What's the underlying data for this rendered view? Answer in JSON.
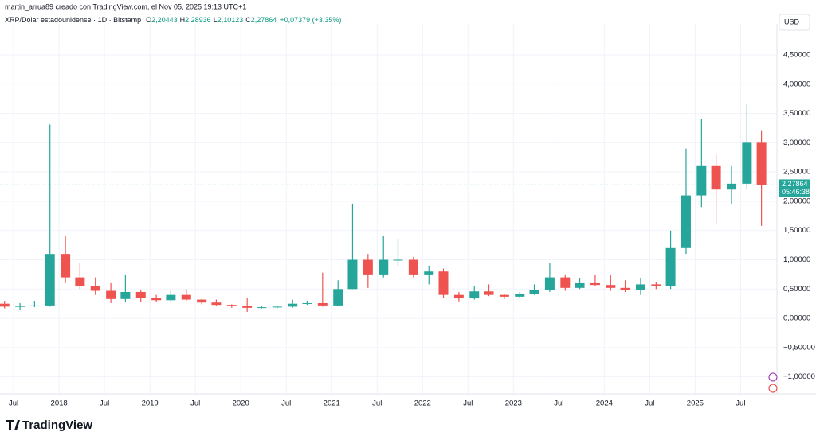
{
  "header": {
    "credit": "martin_arrua89 creado con TradingView.com, el Nov 05, 2025 19:13 UTC+1",
    "symbol": "XRP/Dólar estadounidense · 1D · Bitstamp",
    "ohlc": [
      {
        "key": "O",
        "value": "2,20443"
      },
      {
        "key": "H",
        "value": "2,28936"
      },
      {
        "key": "L",
        "value": "2,10123"
      },
      {
        "key": "C",
        "value": "2,27864"
      }
    ],
    "change": "+0,07379 (+3,35%)",
    "currency": "USD"
  },
  "footer": {
    "logo": "TradingView"
  },
  "chart_data": {
    "type": "candlestick",
    "up_color": "#26a69a",
    "down_color": "#ef5350",
    "grid": true,
    "x": [
      2017.4,
      2017.57,
      2017.73,
      2017.9,
      2018.07,
      2018.23,
      2018.4,
      2018.57,
      2018.73,
      2018.9,
      2019.07,
      2019.23,
      2019.4,
      2019.57,
      2019.73,
      2019.9,
      2020.07,
      2020.23,
      2020.4,
      2020.57,
      2020.73,
      2020.9,
      2021.07,
      2021.23,
      2021.4,
      2021.57,
      2021.73,
      2021.9,
      2022.07,
      2022.23,
      2022.4,
      2022.57,
      2022.73,
      2022.9,
      2023.07,
      2023.23,
      2023.4,
      2023.57,
      2023.73,
      2023.9,
      2024.07,
      2024.23,
      2024.4,
      2024.57,
      2024.73,
      2024.9,
      2025.07,
      2025.23,
      2025.4,
      2025.57,
      2025.73
    ],
    "open": [
      0.25,
      0.2,
      0.21,
      0.22,
      1.1,
      0.7,
      0.55,
      0.47,
      0.33,
      0.45,
      0.35,
      0.31,
      0.4,
      0.32,
      0.27,
      0.23,
      0.21,
      0.18,
      0.19,
      0.2,
      0.25,
      0.26,
      0.22,
      0.5,
      1.0,
      0.75,
      1.0,
      1.0,
      0.75,
      0.8,
      0.4,
      0.34,
      0.46,
      0.4,
      0.37,
      0.42,
      0.48,
      0.7,
      0.52,
      0.6,
      0.57,
      0.52,
      0.48,
      0.58,
      0.55,
      1.2,
      2.1,
      2.6,
      2.2,
      2.3,
      3.0
    ],
    "high": [
      0.3,
      0.26,
      0.3,
      3.31,
      1.4,
      0.95,
      0.7,
      0.6,
      0.75,
      0.48,
      0.4,
      0.48,
      0.5,
      0.33,
      0.32,
      0.24,
      0.34,
      0.21,
      0.21,
      0.32,
      0.3,
      0.78,
      0.65,
      1.96,
      1.1,
      1.41,
      1.35,
      1.05,
      0.9,
      0.85,
      0.45,
      0.55,
      0.58,
      0.42,
      0.45,
      0.58,
      0.94,
      0.75,
      0.68,
      0.75,
      0.74,
      0.65,
      0.68,
      0.62,
      1.5,
      2.9,
      3.4,
      2.8,
      2.6,
      3.66,
      3.2
    ],
    "low": [
      0.17,
      0.15,
      0.19,
      0.2,
      0.6,
      0.5,
      0.4,
      0.26,
      0.28,
      0.28,
      0.28,
      0.29,
      0.3,
      0.24,
      0.22,
      0.18,
      0.11,
      0.17,
      0.17,
      0.18,
      0.23,
      0.2,
      0.22,
      0.5,
      0.52,
      0.7,
      0.9,
      0.7,
      0.58,
      0.35,
      0.29,
      0.32,
      0.38,
      0.33,
      0.35,
      0.4,
      0.45,
      0.47,
      0.5,
      0.55,
      0.47,
      0.45,
      0.4,
      0.5,
      0.5,
      1.1,
      1.9,
      1.6,
      1.95,
      2.2,
      1.58
    ],
    "close": [
      0.2,
      0.21,
      0.22,
      1.1,
      0.7,
      0.55,
      0.47,
      0.33,
      0.45,
      0.35,
      0.31,
      0.4,
      0.32,
      0.27,
      0.23,
      0.21,
      0.18,
      0.19,
      0.2,
      0.25,
      0.26,
      0.22,
      0.5,
      1.0,
      0.75,
      1.0,
      1.0,
      0.75,
      0.8,
      0.4,
      0.34,
      0.46,
      0.4,
      0.37,
      0.42,
      0.48,
      0.7,
      0.52,
      0.6,
      0.57,
      0.52,
      0.48,
      0.58,
      0.55,
      1.2,
      2.1,
      2.6,
      2.2,
      2.3,
      3.0,
      2.28
    ],
    "xlim": [
      2017.35,
      2025.9
    ],
    "xticks": [
      {
        "value": 2017.5,
        "label": "Jul"
      },
      2018,
      {
        "value": 2018.5,
        "label": "Jul"
      },
      2019,
      {
        "value": 2019.5,
        "label": "Jul"
      },
      2020,
      {
        "value": 2020.5,
        "label": "Jul"
      },
      2021,
      {
        "value": 2021.5,
        "label": "Jul"
      },
      2022,
      {
        "value": 2022.5,
        "label": "Jul"
      },
      2023,
      {
        "value": 2023.5,
        "label": "Jul"
      },
      2024,
      {
        "value": 2024.5,
        "label": "Jul"
      },
      2025,
      {
        "value": 2025.5,
        "label": "Jul"
      }
    ],
    "ylim": [
      -1.29,
      5.03
    ],
    "yticks": [
      {
        "value": -1,
        "label": "−1,00000"
      },
      {
        "value": -0.5,
        "label": "−0,50000"
      },
      {
        "value": 0,
        "label": "0,00000"
      },
      {
        "value": 0.5,
        "label": "0,50000"
      },
      {
        "value": 1,
        "label": "1,00000"
      },
      {
        "value": 1.5,
        "label": "1,50000"
      },
      {
        "value": 2,
        "label": "2,00000"
      },
      {
        "value": 2.5,
        "label": "2,50000"
      },
      {
        "value": 3,
        "label": "3,00000"
      },
      {
        "value": 3.5,
        "label": "3,50000"
      },
      {
        "value": 4,
        "label": "4,00000"
      },
      {
        "value": 4.5,
        "label": "4,50000"
      }
    ],
    "last_price": {
      "value": 2.27864,
      "label": "2,27864"
    },
    "countdown": "05:46:38"
  }
}
